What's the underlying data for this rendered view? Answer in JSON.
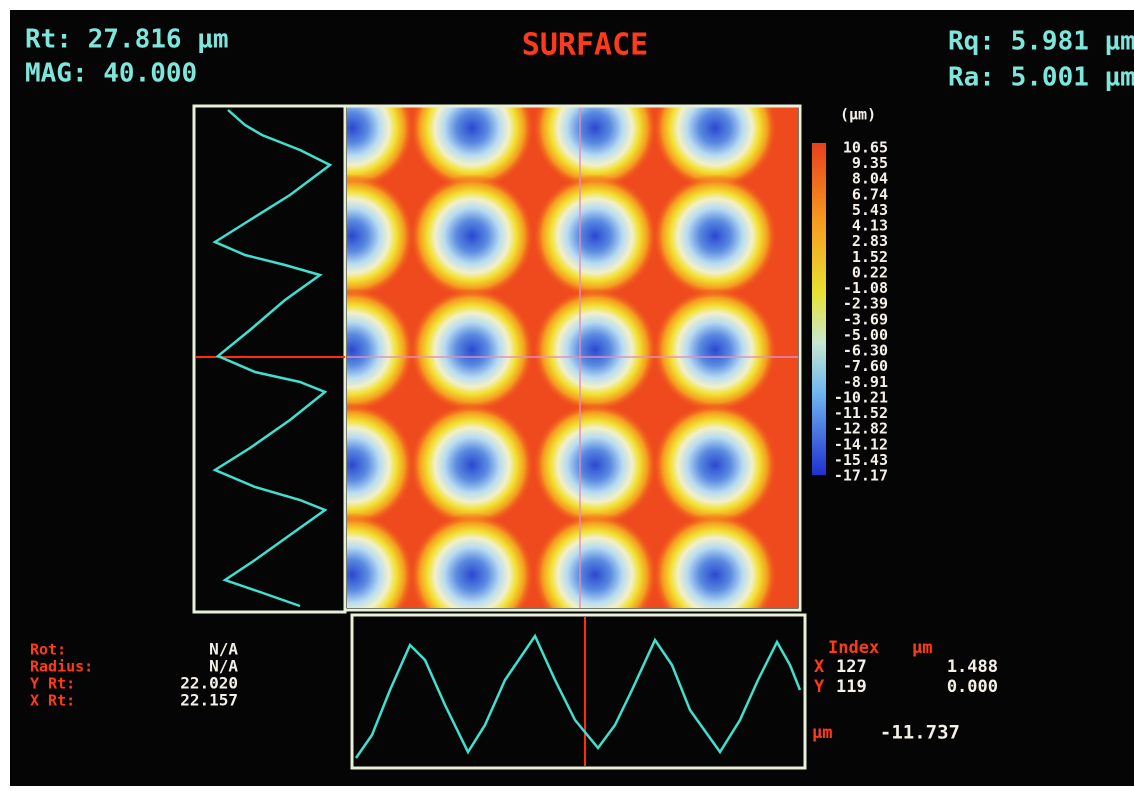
{
  "header": {
    "rt": "Rt: 27.816 µm",
    "mag": "MAG: 40.000",
    "title": "SURFACE",
    "rq": "Rq: 5.981 µm",
    "ra": "Ra: 5.001 µm"
  },
  "scale": {
    "unit": "(µm)",
    "labels": [
      "10.65",
      "9.35",
      "8.04",
      "6.74",
      "5.43",
      "4.13",
      "2.83",
      "1.52",
      "0.22",
      "-1.08",
      "-2.39",
      "-3.69",
      "-5.00",
      "-6.30",
      "-7.60",
      "-8.91",
      "-10.21",
      "-11.52",
      "-12.82",
      "-14.12",
      "-15.43",
      "-17.17"
    ]
  },
  "readout": {
    "rows": [
      {
        "label": "Rot:",
        "value": "N/A"
      },
      {
        "label": "Radius:",
        "value": "N/A"
      },
      {
        "label": "Y Rt:",
        "value": "22.020"
      },
      {
        "label": "X Rt:",
        "value": "22.157"
      }
    ]
  },
  "cursor": {
    "header": {
      "index": "Index",
      "unit": "µm"
    },
    "rows": [
      {
        "axis": "X",
        "index": "127",
        "value": "1.488"
      },
      {
        "axis": "Y",
        "index": "119",
        "value": "0.000"
      }
    ],
    "depth": {
      "unit": "µm",
      "value": "-11.737"
    }
  }
}
